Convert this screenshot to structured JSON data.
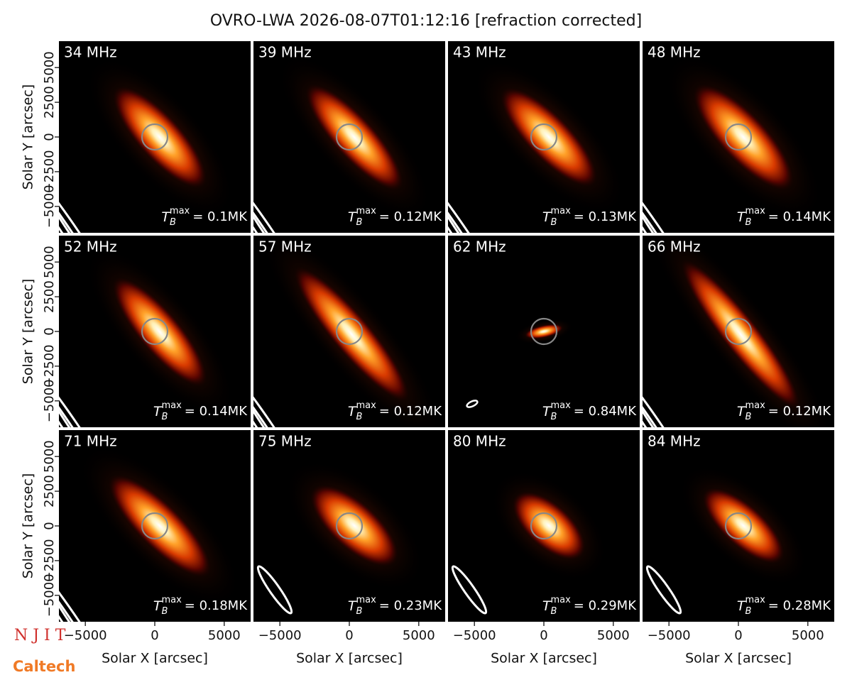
{
  "chart_data": {
    "type": "image-grid",
    "title": "OVRO-LWA 2026-08-07T01:12:16 [refraction corrected]",
    "xlabel": "Solar X [arcsec]",
    "ylabel": "Solar Y [arcsec]",
    "xlim": [
      -6900,
      6900
    ],
    "ylim": [
      -6900,
      6900
    ],
    "xticks": [
      {
        "value": -5000,
        "label": "−5000"
      },
      0,
      5000
    ],
    "yticks": [
      {
        "value": -5000,
        "label": "−5000"
      },
      {
        "value": -2500,
        "label": "−2500"
      },
      0,
      2500,
      5000
    ],
    "annotation_symbol": {
      "base": "T",
      "subscript": "B",
      "superscript": "max"
    },
    "panels": [
      {
        "title": "34 MHz",
        "annotation": "= 0.1MK"
      },
      {
        "title": "39 MHz",
        "annotation": "= 0.12MK"
      },
      {
        "title": "43 MHz",
        "annotation": "= 0.13MK"
      },
      {
        "title": "48 MHz",
        "annotation": "= 0.14MK"
      },
      {
        "title": "52 MHz",
        "annotation": "= 0.14MK"
      },
      {
        "title": "57 MHz",
        "annotation": "= 0.12MK"
      },
      {
        "title": "62 MHz",
        "annotation": "= 0.84MK"
      },
      {
        "title": "66 MHz",
        "annotation": "= 0.12MK"
      },
      {
        "title": "71 MHz",
        "annotation": "= 0.18MK"
      },
      {
        "title": "75 MHz",
        "annotation": "= 0.23MK"
      },
      {
        "title": "80 MHz",
        "annotation": "= 0.29MK"
      },
      {
        "title": "84 MHz",
        "annotation": "= 0.28MK"
      }
    ],
    "logos": [
      "N J I T",
      "Caltech"
    ]
  }
}
